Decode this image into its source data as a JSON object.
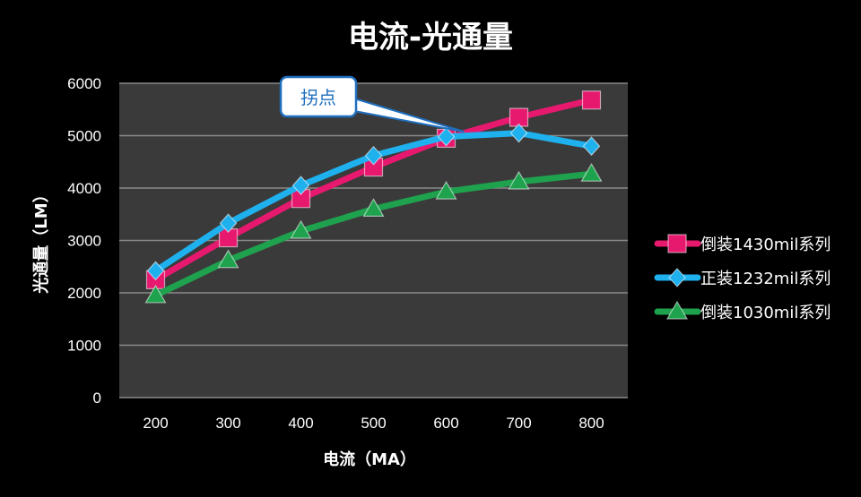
{
  "colors": {
    "background": "#000000",
    "plot_area": "#3a3a3a",
    "grid": "#8a8a8a",
    "series_pink": "#e6196e",
    "series_blue": "#1fb0ee",
    "series_green": "#1ea24e",
    "callout_border": "#1f6fbf"
  },
  "chart_data": {
    "type": "line",
    "title": "电流-光通量",
    "xlabel": "电流（MA）",
    "ylabel": "光通量（LM）",
    "x": [
      200,
      300,
      400,
      500,
      600,
      700,
      800
    ],
    "x_tick_labels": [
      "200",
      "300",
      "400",
      "500",
      "600",
      "700",
      "800"
    ],
    "ylim": [
      0,
      6000
    ],
    "y_ticks": [
      0,
      1000,
      2000,
      3000,
      4000,
      5000,
      6000
    ],
    "y_tick_labels": [
      "0",
      "1000",
      "2000",
      "3000",
      "4000",
      "5000",
      "6000"
    ],
    "grid": true,
    "legend_position": "right",
    "series": [
      {
        "name": "倒装1430mil系列",
        "marker": "square",
        "color": "#e6196e",
        "values": [
          2250,
          3050,
          3800,
          4400,
          4950,
          5350,
          5680
        ]
      },
      {
        "name": "正装1232mil系列",
        "marker": "diamond",
        "color": "#1fb0ee",
        "values": [
          2420,
          3330,
          4050,
          4620,
          4980,
          5050,
          4800
        ]
      },
      {
        "name": "倒装1030mil系列",
        "marker": "triangle",
        "color": "#1ea24e",
        "values": [
          1950,
          2620,
          3180,
          3600,
          3930,
          4120,
          4270
        ]
      }
    ],
    "annotations": [
      {
        "text": "拐点",
        "x": 600,
        "y": 4990
      }
    ]
  }
}
